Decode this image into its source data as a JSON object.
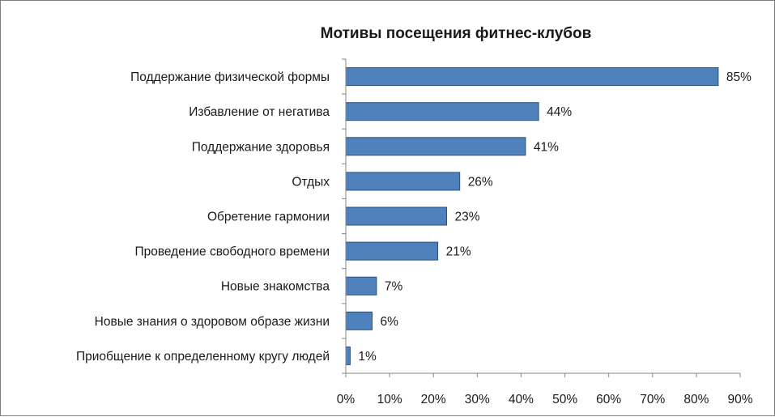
{
  "chart_data": {
    "type": "bar",
    "orientation": "horizontal",
    "title": "Мотивы посещения фитнес-клубов",
    "categories": [
      "Поддержание физической формы",
      "Избавление от негатива",
      "Поддержание здоровья",
      "Отдых",
      "Обретение гармонии",
      "Проведение свободного времени",
      "Новые знакомства",
      "Новые знания о здоровом образе жизни",
      "Приобщение к определенному кругу людей"
    ],
    "values": [
      85,
      44,
      41,
      26,
      23,
      21,
      7,
      6,
      1
    ],
    "data_labels": [
      "85%",
      "44%",
      "41%",
      "26%",
      "23%",
      "21%",
      "7%",
      "6%",
      "1%"
    ],
    "xlim": [
      0,
      90
    ],
    "xticks": [
      0,
      10,
      20,
      30,
      40,
      50,
      60,
      70,
      80,
      90
    ],
    "xtick_labels": [
      "0%",
      "10%",
      "20%",
      "30%",
      "40%",
      "50%",
      "60%",
      "70%",
      "80%",
      "90%"
    ],
    "xlabel": "",
    "ylabel": "",
    "grid": false,
    "legend": "none",
    "bar_color": "#4f81bd",
    "bar_edge_color": "#2c4f7c"
  }
}
